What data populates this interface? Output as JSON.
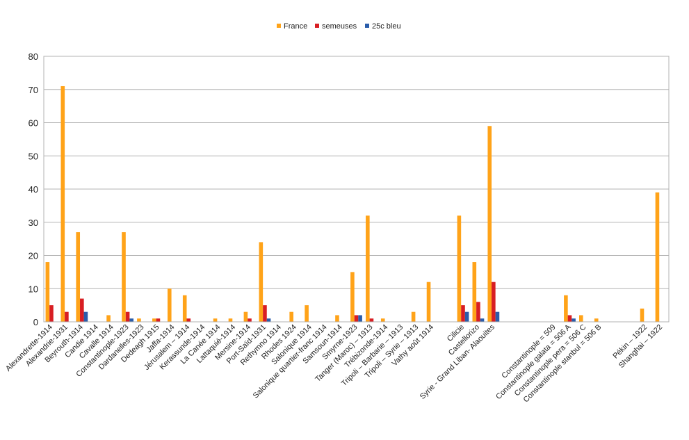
{
  "chart_data": {
    "type": "bar",
    "title": "",
    "xlabel": "",
    "ylabel": "",
    "ylim": [
      0,
      80
    ],
    "yticks": [
      0,
      10,
      20,
      30,
      40,
      50,
      60,
      70,
      80
    ],
    "grid": true,
    "legend_position": "top-center",
    "categories": [
      "Alexandrette-1914",
      "Alexandrie-1931",
      "Beyrouth-1914",
      "Candie 1914",
      "Cavalle 1914",
      "Constantinople-1923",
      "Dardanelles-1923",
      "Dedeagh 1915",
      "Jaffa-1914",
      "Jérusalem – 1914",
      "Kerassunde-1914",
      "La Canée 1914",
      "Lattaquié-1914",
      "Mersine-1914",
      "Port-Saïd-1931",
      "Rethymno 1914",
      "Rhodes 1924",
      "Salonique 1914",
      "Salonique quartier-franc 1914",
      "Samsoun-1914",
      "Smyrne-1923",
      "Tanger (Maroc) – 1913",
      "Trébizonde-1914",
      "Tripoli – Barbarie – 1913",
      "Tripoli – Syrie – 1913",
      "Vathy août 1914",
      "",
      "Cilicie",
      "Castellorizo",
      "Syrie - Grand Liban- Alaouites",
      "",
      "",
      "",
      "Constantinople = 509",
      "Constantinople galata = 506 A",
      "Constantinople pera = 506 C",
      "Constantinople stanbul  = 506 B",
      "",
      "",
      "Pékin – 1922",
      "Shanghai – 1922"
    ],
    "series": [
      {
        "name": "France",
        "color": "#ffa319",
        "values": [
          18,
          71,
          27,
          0,
          2,
          27,
          1,
          1,
          10,
          8,
          0,
          1,
          1,
          3,
          24,
          0,
          3,
          5,
          0,
          2,
          15,
          32,
          1,
          0,
          3,
          12,
          0,
          32,
          18,
          59,
          0,
          0,
          0,
          0,
          8,
          2,
          1,
          0,
          0,
          4,
          39
        ]
      },
      {
        "name": "semeuses",
        "color": "#d81e23",
        "values": [
          5,
          3,
          7,
          0,
          0,
          3,
          0,
          1,
          0,
          1,
          0,
          0,
          0,
          1,
          5,
          0,
          0,
          0,
          0,
          0,
          2,
          1,
          0,
          0,
          0,
          0,
          0,
          5,
          6,
          12,
          0,
          0,
          0,
          0,
          2,
          0,
          0,
          0,
          0,
          0,
          0
        ]
      },
      {
        "name": "25c bleu",
        "color": "#2a5caa",
        "values": [
          0,
          0,
          3,
          0,
          0,
          1,
          0,
          0,
          0,
          0,
          0,
          0,
          0,
          0,
          1,
          0,
          0,
          0,
          0,
          0,
          2,
          0,
          0,
          0,
          0,
          0,
          0,
          3,
          1,
          3,
          0,
          0,
          0,
          0,
          1,
          0,
          0,
          0,
          0,
          0,
          0
        ]
      }
    ]
  }
}
